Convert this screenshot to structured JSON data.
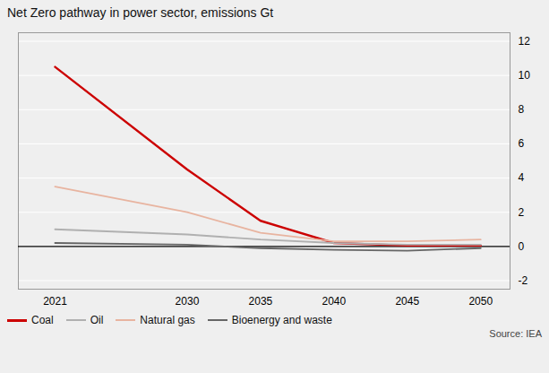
{
  "chart_data": {
    "type": "line",
    "title": "Net Zero pathway in power sector, emissions Gt",
    "annotations": [
      "Source: IEA"
    ],
    "x": [
      2021,
      2030,
      2035,
      2040,
      2045,
      2050
    ],
    "series": [
      {
        "name": "Coal",
        "color": "#cc0000",
        "values": [
          10.5,
          4.5,
          1.5,
          0.2,
          0.05,
          0.05
        ]
      },
      {
        "name": "Oil",
        "color": "#b0b0b0",
        "values": [
          1.0,
          0.7,
          0.4,
          0.2,
          0.1,
          0.1
        ]
      },
      {
        "name": "Natural gas",
        "color": "#e8b4a0",
        "values": [
          3.5,
          2.0,
          0.8,
          0.3,
          0.3,
          0.4
        ]
      },
      {
        "name": "Bioenergy and waste",
        "color": "#666666",
        "values": [
          0.2,
          0.1,
          -0.1,
          -0.2,
          -0.25,
          -0.1
        ]
      }
    ],
    "xlim": [
      2018.5,
      2052
    ],
    "xticks": [
      2021,
      2030,
      2035,
      2040,
      2045,
      2050
    ],
    "ylim": [
      -2.5,
      12.5
    ],
    "yticks": [
      -2,
      0,
      2,
      4,
      6,
      8,
      10,
      12
    ],
    "grid": true,
    "legend": "bottom"
  }
}
